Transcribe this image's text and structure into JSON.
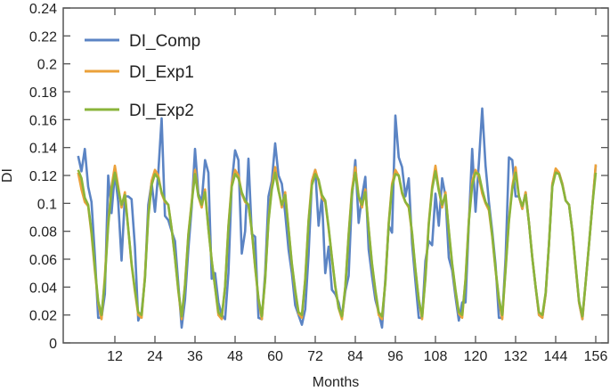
{
  "chart_data": {
    "type": "line",
    "title": "",
    "xlabel": "Months",
    "ylabel": "DI",
    "xlim": [
      0,
      159
    ],
    "ylim": [
      0,
      0.24
    ],
    "grid": false,
    "legend_position": "upper-left-inside",
    "x_ticks": [
      12,
      24,
      36,
      48,
      60,
      72,
      84,
      96,
      108,
      120,
      132,
      144,
      156
    ],
    "x_tick_labels": [
      "12",
      "24",
      "36",
      "48",
      "60",
      "72",
      "84",
      "96",
      "108",
      "120",
      "132",
      "144",
      "156"
    ],
    "y_ticks": [
      0,
      0.02,
      0.04,
      0.06,
      0.08,
      0.1,
      0.12,
      0.14,
      0.16,
      0.18,
      0.2,
      0.22,
      0.24
    ],
    "y_tick_labels": [
      "0",
      "0.02",
      "0.04",
      "0.06",
      "0.08",
      "0.1",
      "0.12",
      "0.14",
      "0.16",
      "0.18",
      "0.2",
      "0.22",
      "0.24"
    ],
    "x_start": 1,
    "series": [
      {
        "name": "DI_Comp",
        "color": "#5b84c4",
        "values": [
          0.134,
          0.123,
          0.139,
          0.112,
          0.101,
          0.063,
          0.018,
          0.018,
          0.035,
          0.12,
          0.093,
          0.122,
          0.101,
          0.059,
          0.105,
          0.105,
          0.103,
          0.069,
          0.016,
          0.022,
          0.046,
          0.099,
          0.115,
          0.094,
          0.122,
          0.161,
          0.091,
          0.088,
          0.08,
          0.073,
          0.042,
          0.011,
          0.031,
          0.067,
          0.097,
          0.139,
          0.107,
          0.101,
          0.131,
          0.122,
          0.046,
          0.05,
          0.029,
          0.02,
          0.017,
          0.05,
          0.114,
          0.138,
          0.131,
          0.064,
          0.08,
          0.132,
          0.078,
          0.076,
          0.018,
          0.017,
          0.05,
          0.105,
          0.116,
          0.143,
          0.12,
          0.114,
          0.093,
          0.067,
          0.05,
          0.027,
          0.02,
          0.013,
          0.024,
          0.063,
          0.116,
          0.124,
          0.084,
          0.105,
          0.05,
          0.069,
          0.038,
          0.035,
          0.029,
          0.018,
          0.037,
          0.048,
          0.105,
          0.131,
          0.086,
          0.105,
          0.119,
          0.067,
          0.048,
          0.031,
          0.022,
          0.011,
          0.046,
          0.084,
          0.079,
          0.163,
          0.133,
          0.126,
          0.105,
          0.118,
          0.071,
          0.044,
          0.018,
          0.018,
          0.059,
          0.073,
          0.07,
          0.107,
          0.084,
          0.118,
          0.105,
          0.061,
          0.052,
          0.033,
          0.016,
          0.029,
          0.029,
          0.086,
          0.139,
          0.094,
          0.129,
          0.168,
          0.127,
          0.101,
          0.08,
          0.056,
          0.018,
          0.018,
          0.061,
          0.133,
          0.131,
          0.105,
          0.105,
          0.096,
          0.108,
          0.086,
          0.061,
          0.04,
          0.02,
          0.018,
          0.035,
          0.071,
          0.114,
          0.124,
          0.122,
          0.114,
          0.102,
          0.099,
          0.08,
          0.054,
          0.029,
          0.017,
          0.044,
          0.071,
          0.099,
          0.127
        ]
      },
      {
        "name": "DI_Exp1",
        "color": "#eba13a",
        "values": [
          0.122,
          0.11,
          0.101,
          0.098,
          0.078,
          0.052,
          0.029,
          0.017,
          0.048,
          0.086,
          0.112,
          0.127,
          0.112,
          0.097,
          0.108,
          0.082,
          0.056,
          0.037,
          0.02,
          0.018,
          0.048,
          0.091,
          0.116,
          0.124,
          0.12,
          0.107,
          0.101,
          0.099,
          0.082,
          0.061,
          0.037,
          0.017,
          0.042,
          0.078,
          0.101,
          0.124,
          0.105,
          0.097,
          0.11,
          0.082,
          0.059,
          0.04,
          0.02,
          0.017,
          0.04,
          0.084,
          0.114,
          0.124,
          0.12,
          0.107,
          0.101,
          0.099,
          0.08,
          0.054,
          0.031,
          0.017,
          0.046,
          0.088,
          0.112,
          0.126,
          0.11,
          0.097,
          0.108,
          0.082,
          0.056,
          0.037,
          0.021,
          0.018,
          0.046,
          0.088,
          0.116,
          0.124,
          0.116,
          0.104,
          0.101,
          0.082,
          0.061,
          0.04,
          0.025,
          0.017,
          0.04,
          0.078,
          0.11,
          0.126,
          0.105,
          0.097,
          0.11,
          0.082,
          0.056,
          0.037,
          0.02,
          0.017,
          0.044,
          0.086,
          0.114,
          0.124,
          0.12,
          0.107,
          0.101,
          0.097,
          0.078,
          0.052,
          0.031,
          0.017,
          0.048,
          0.086,
          0.112,
          0.127,
          0.11,
          0.097,
          0.108,
          0.08,
          0.056,
          0.037,
          0.021,
          0.018,
          0.046,
          0.088,
          0.116,
          0.124,
          0.119,
          0.107,
          0.1,
          0.095,
          0.076,
          0.052,
          0.031,
          0.017,
          0.054,
          0.088,
          0.112,
          0.126,
          0.105,
          0.096,
          0.108,
          0.086,
          0.061,
          0.04,
          0.02,
          0.018,
          0.035,
          0.071,
          0.114,
          0.125,
          0.122,
          0.114,
          0.102,
          0.099,
          0.08,
          0.054,
          0.029,
          0.017,
          0.044,
          0.071,
          0.099,
          0.128
        ]
      },
      {
        "name": "DI_Exp2",
        "color": "#8ab43b",
        "values": [
          0.124,
          0.118,
          0.104,
          0.099,
          0.08,
          0.054,
          0.03,
          0.02,
          0.045,
          0.084,
          0.11,
          0.122,
          0.11,
          0.099,
          0.106,
          0.082,
          0.057,
          0.038,
          0.022,
          0.02,
          0.046,
          0.09,
          0.113,
          0.121,
          0.118,
          0.108,
          0.102,
          0.099,
          0.082,
          0.061,
          0.038,
          0.019,
          0.041,
          0.077,
          0.1,
          0.121,
          0.105,
          0.099,
          0.108,
          0.082,
          0.059,
          0.04,
          0.022,
          0.019,
          0.04,
          0.083,
          0.112,
          0.121,
          0.118,
          0.108,
          0.102,
          0.099,
          0.081,
          0.055,
          0.032,
          0.019,
          0.045,
          0.087,
          0.11,
          0.122,
          0.109,
          0.099,
          0.106,
          0.082,
          0.057,
          0.038,
          0.022,
          0.02,
          0.045,
          0.087,
          0.113,
          0.121,
          0.117,
          0.106,
          0.102,
          0.083,
          0.061,
          0.041,
          0.025,
          0.019,
          0.04,
          0.077,
          0.108,
          0.122,
          0.105,
          0.099,
          0.108,
          0.082,
          0.057,
          0.038,
          0.022,
          0.019,
          0.043,
          0.085,
          0.112,
          0.121,
          0.12,
          0.108,
          0.101,
          0.098,
          0.079,
          0.053,
          0.031,
          0.019,
          0.046,
          0.085,
          0.11,
          0.123,
          0.109,
          0.099,
          0.106,
          0.081,
          0.057,
          0.038,
          0.022,
          0.02,
          0.045,
          0.087,
          0.113,
          0.122,
          0.121,
          0.11,
          0.101,
          0.097,
          0.077,
          0.053,
          0.032,
          0.02,
          0.052,
          0.087,
          0.11,
          0.122,
          0.105,
          0.098,
          0.106,
          0.086,
          0.061,
          0.04,
          0.022,
          0.02,
          0.036,
          0.071,
          0.112,
          0.122,
          0.121,
          0.113,
          0.102,
          0.099,
          0.08,
          0.055,
          0.03,
          0.019,
          0.044,
          0.071,
          0.099,
          0.122
        ]
      }
    ]
  }
}
